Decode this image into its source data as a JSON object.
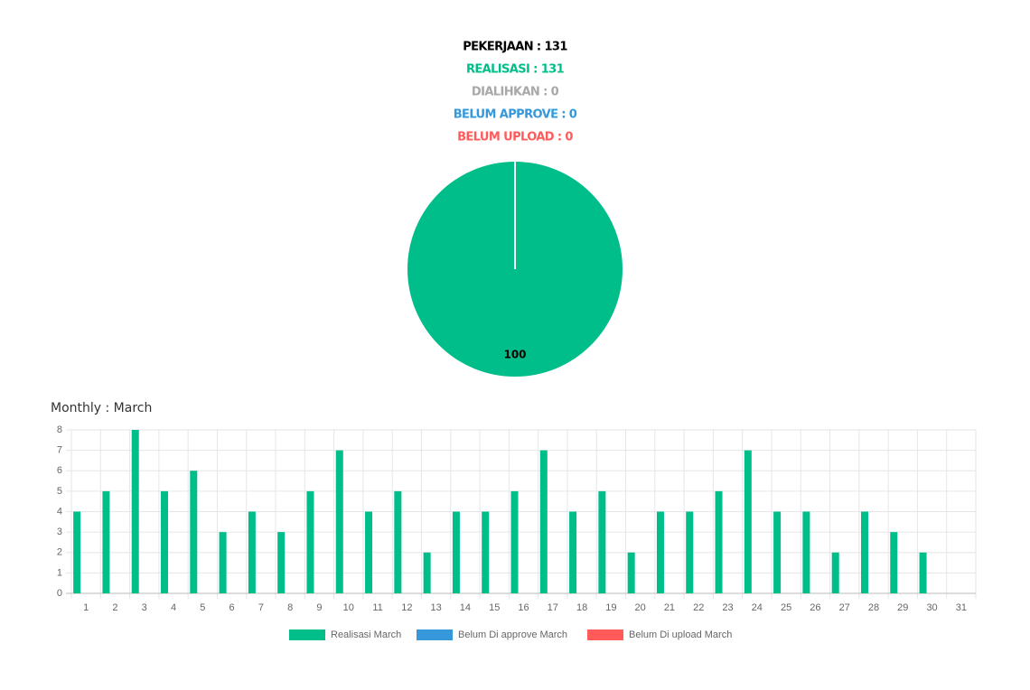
{
  "summary": [
    "PEKERJAAN : 131",
    "REALISASI : 131",
    "DIALIHKAN : 0",
    "BELUM APPROVE : 0",
    "BELUM UPLOAD : 0"
  ],
  "chart_data": [
    {
      "type": "pie",
      "values": [
        100
      ],
      "colors": [
        "#00be8a"
      ]
    },
    {
      "type": "bar",
      "title": "Monthly : March",
      "categories": [
        "1",
        "2",
        "3",
        "4",
        "5",
        "6",
        "7",
        "8",
        "9",
        "10",
        "11",
        "12",
        "13",
        "14",
        "15",
        "16",
        "17",
        "18",
        "19",
        "20",
        "21",
        "22",
        "23",
        "24",
        "25",
        "26",
        "27",
        "28",
        "29",
        "30",
        "31"
      ],
      "series": [
        {
          "name": "Realisasi March",
          "color": "#00be8a",
          "values": [
            4,
            5,
            8,
            5,
            6,
            3,
            4,
            3,
            5,
            7,
            4,
            5,
            2,
            4,
            4,
            5,
            7,
            4,
            5,
            2,
            4,
            4,
            5,
            7,
            4,
            4,
            2,
            4,
            3,
            2,
            0
          ]
        },
        {
          "name": "Belum Di approve March",
          "color": "#3498db",
          "values": [
            0,
            0,
            0,
            0,
            0,
            0,
            0,
            0,
            0,
            0,
            0,
            0,
            0,
            0,
            0,
            0,
            0,
            0,
            0,
            0,
            0,
            0,
            0,
            0,
            0,
            0,
            0,
            0,
            0,
            0,
            0
          ]
        },
        {
          "name": "Belum Di upload March",
          "color": "#ff5b5b",
          "values": [
            0,
            0,
            0,
            0,
            0,
            0,
            0,
            0,
            0,
            0,
            0,
            0,
            0,
            0,
            0,
            0,
            0,
            0,
            0,
            0,
            0,
            0,
            0,
            0,
            0,
            0,
            0,
            0,
            0,
            0,
            0
          ]
        }
      ],
      "ylim": [
        0,
        8
      ],
      "yticks": [
        0,
        1,
        2,
        3,
        4,
        5,
        6,
        7,
        8
      ],
      "grid": true,
      "legend": "bottom"
    }
  ]
}
